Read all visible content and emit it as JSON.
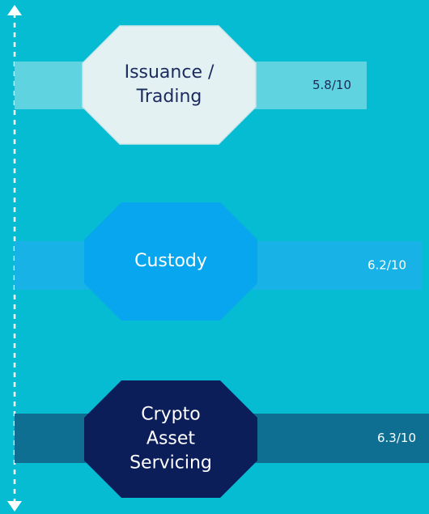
{
  "items": [
    {
      "label": [
        "Issuance /",
        "Trading"
      ],
      "score": "5.8/10"
    },
    {
      "label": [
        "Custody"
      ],
      "score": "6.2/10"
    },
    {
      "label": [
        "Crypto",
        "Asset",
        "Servicing"
      ],
      "score": "6.3/10"
    }
  ]
}
